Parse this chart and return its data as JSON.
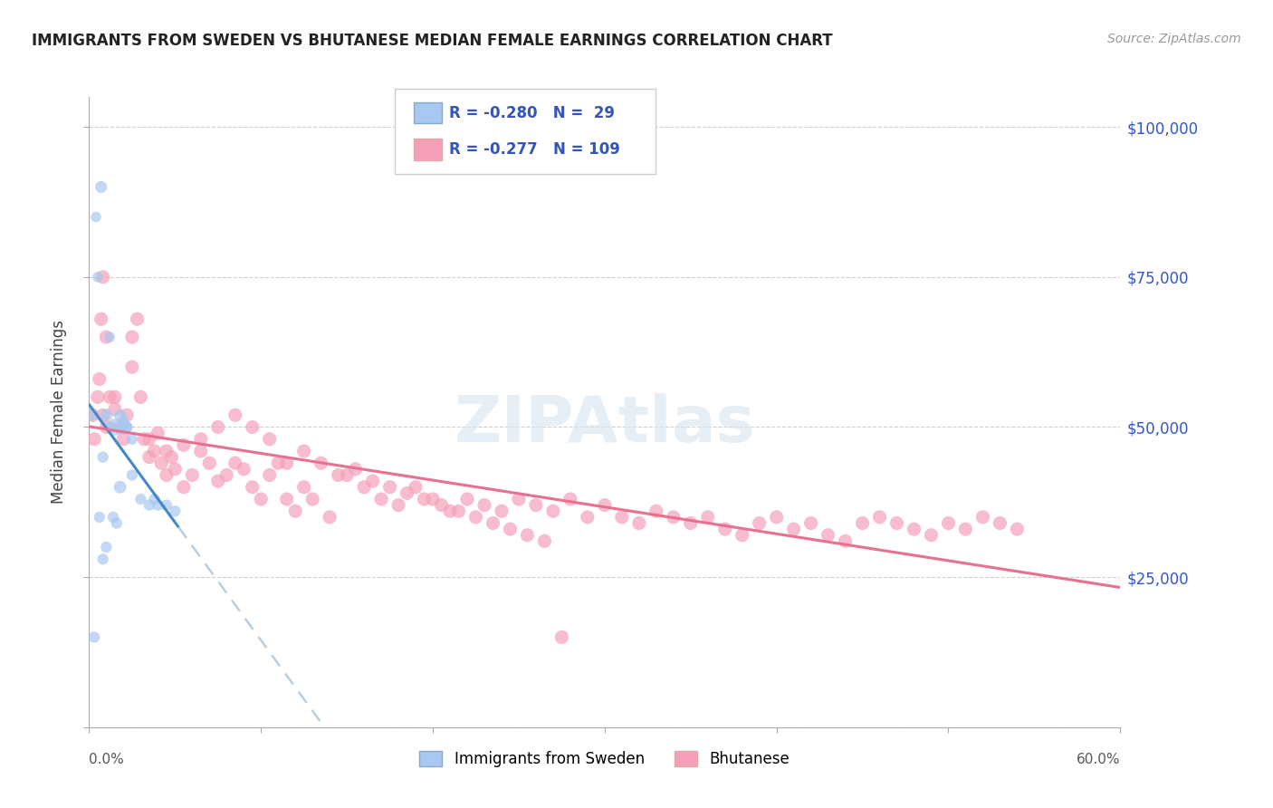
{
  "title": "IMMIGRANTS FROM SWEDEN VS BHUTANESE MEDIAN FEMALE EARNINGS CORRELATION CHART",
  "source": "Source: ZipAtlas.com",
  "ylabel": "Median Female Earnings",
  "y_ticks": [
    0,
    25000,
    50000,
    75000,
    100000
  ],
  "y_tick_labels": [
    "",
    "$25,000",
    "$50,000",
    "$75,000",
    "$100,000"
  ],
  "xlim": [
    0.0,
    0.6
  ],
  "ylim": [
    0,
    105000
  ],
  "blue_color": "#a8c8f0",
  "blue_line_color": "#4488cc",
  "pink_color": "#f5a0b8",
  "pink_line_color": "#e87090",
  "dashed_line_color": "#b8cfe0",
  "watermark": "ZIPAtlas",
  "legend_label1": "Immigrants from Sweden",
  "legend_label2": "Bhutanese",
  "blue_scatter_x": [
    0.002,
    0.004,
    0.007,
    0.005,
    0.012,
    0.01,
    0.015,
    0.018,
    0.02,
    0.008,
    0.022,
    0.025,
    0.018,
    0.03,
    0.025,
    0.035,
    0.04,
    0.05,
    0.045,
    0.038,
    0.003,
    0.006,
    0.014,
    0.016,
    0.012,
    0.02,
    0.022,
    0.01,
    0.008
  ],
  "blue_scatter_y": [
    52000,
    85000,
    90000,
    75000,
    65000,
    52000,
    50000,
    52000,
    50000,
    45000,
    50000,
    48000,
    40000,
    38000,
    42000,
    37000,
    37000,
    36000,
    37000,
    38000,
    15000,
    35000,
    35000,
    34000,
    50000,
    51000,
    50000,
    30000,
    28000
  ],
  "blue_scatter_sizes": [
    80,
    70,
    90,
    70,
    70,
    100,
    180,
    90,
    150,
    80,
    80,
    80,
    100,
    80,
    80,
    80,
    80,
    80,
    80,
    80,
    80,
    80,
    80,
    80,
    80,
    80,
    80,
    80,
    80
  ],
  "pink_scatter_x": [
    0.002,
    0.003,
    0.005,
    0.006,
    0.007,
    0.008,
    0.01,
    0.012,
    0.015,
    0.018,
    0.02,
    0.022,
    0.025,
    0.028,
    0.03,
    0.032,
    0.035,
    0.038,
    0.04,
    0.042,
    0.045,
    0.048,
    0.05,
    0.055,
    0.06,
    0.065,
    0.07,
    0.075,
    0.08,
    0.085,
    0.09,
    0.095,
    0.1,
    0.105,
    0.11,
    0.115,
    0.12,
    0.125,
    0.13,
    0.14,
    0.15,
    0.16,
    0.17,
    0.18,
    0.19,
    0.2,
    0.21,
    0.22,
    0.23,
    0.24,
    0.25,
    0.26,
    0.27,
    0.28,
    0.29,
    0.3,
    0.31,
    0.32,
    0.33,
    0.34,
    0.35,
    0.36,
    0.37,
    0.38,
    0.39,
    0.4,
    0.41,
    0.42,
    0.43,
    0.44,
    0.45,
    0.46,
    0.47,
    0.48,
    0.49,
    0.5,
    0.51,
    0.52,
    0.53,
    0.54,
    0.008,
    0.01,
    0.015,
    0.025,
    0.035,
    0.045,
    0.055,
    0.065,
    0.075,
    0.085,
    0.095,
    0.105,
    0.115,
    0.125,
    0.135,
    0.145,
    0.155,
    0.165,
    0.175,
    0.185,
    0.195,
    0.205,
    0.215,
    0.225,
    0.235,
    0.245,
    0.255,
    0.265,
    0.275
  ],
  "pink_scatter_y": [
    52000,
    48000,
    55000,
    58000,
    68000,
    52000,
    50000,
    55000,
    53000,
    50000,
    48000,
    52000,
    65000,
    68000,
    55000,
    48000,
    45000,
    46000,
    49000,
    44000,
    42000,
    45000,
    43000,
    40000,
    42000,
    46000,
    44000,
    41000,
    42000,
    44000,
    43000,
    40000,
    38000,
    42000,
    44000,
    38000,
    36000,
    40000,
    38000,
    35000,
    42000,
    40000,
    38000,
    37000,
    40000,
    38000,
    36000,
    38000,
    37000,
    36000,
    38000,
    37000,
    36000,
    38000,
    35000,
    37000,
    35000,
    34000,
    36000,
    35000,
    34000,
    35000,
    33000,
    32000,
    34000,
    35000,
    33000,
    34000,
    32000,
    31000,
    34000,
    35000,
    34000,
    33000,
    32000,
    34000,
    33000,
    35000,
    34000,
    33000,
    75000,
    65000,
    55000,
    60000,
    48000,
    46000,
    47000,
    48000,
    50000,
    52000,
    50000,
    48000,
    44000,
    46000,
    44000,
    42000,
    43000,
    41000,
    40000,
    39000,
    38000,
    37000,
    36000,
    35000,
    34000,
    33000,
    32000,
    31000,
    15000
  ]
}
